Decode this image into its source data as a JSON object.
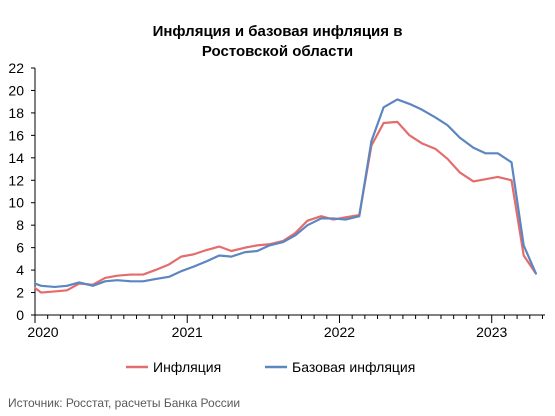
{
  "chart_data": {
    "type": "line",
    "title_lines": [
      "Инфляция и базовая инфляция в",
      "Ростовской области"
    ],
    "xlabel": "",
    "ylabel": "",
    "ylim": [
      0,
      22
    ],
    "yticks": [
      "0",
      "2",
      "4",
      "6",
      "8",
      "10",
      "12",
      "14",
      "16",
      "18",
      "20",
      "22"
    ],
    "xlim": [
      2020.0,
      2023.35
    ],
    "xticks": [
      {
        "value": 2020,
        "label": "2020"
      },
      {
        "value": 2021,
        "label": "2021"
      },
      {
        "value": 2022,
        "label": "2022"
      },
      {
        "value": 2023,
        "label": "2023"
      }
    ],
    "grid": false,
    "legend_position": "bottom",
    "series": [
      {
        "name": "Инфляция",
        "color": "#E46C6C",
        "points": [
          [
            2020.0,
            2.4
          ],
          [
            2020.04,
            2.0
          ],
          [
            2020.13,
            2.1
          ],
          [
            2020.21,
            2.2
          ],
          [
            2020.29,
            2.8
          ],
          [
            2020.38,
            2.7
          ],
          [
            2020.46,
            3.3
          ],
          [
            2020.54,
            3.5
          ],
          [
            2020.63,
            3.6
          ],
          [
            2020.71,
            3.6
          ],
          [
            2020.79,
            4.0
          ],
          [
            2020.88,
            4.5
          ],
          [
            2020.96,
            5.2
          ],
          [
            2021.04,
            5.4
          ],
          [
            2021.13,
            5.8
          ],
          [
            2021.21,
            6.1
          ],
          [
            2021.29,
            5.7
          ],
          [
            2021.38,
            6.0
          ],
          [
            2021.46,
            6.2
          ],
          [
            2021.54,
            6.3
          ],
          [
            2021.63,
            6.6
          ],
          [
            2021.71,
            7.3
          ],
          [
            2021.79,
            8.4
          ],
          [
            2021.88,
            8.8
          ],
          [
            2021.96,
            8.5
          ],
          [
            2022.04,
            8.7
          ],
          [
            2022.13,
            8.9
          ],
          [
            2022.21,
            15.1
          ],
          [
            2022.29,
            17.1
          ],
          [
            2022.38,
            17.2
          ],
          [
            2022.46,
            16.0
          ],
          [
            2022.54,
            15.3
          ],
          [
            2022.63,
            14.8
          ],
          [
            2022.71,
            13.9
          ],
          [
            2022.79,
            12.7
          ],
          [
            2022.88,
            11.9
          ],
          [
            2022.96,
            12.1
          ],
          [
            2023.04,
            12.3
          ],
          [
            2023.13,
            12.0
          ],
          [
            2023.21,
            5.3
          ],
          [
            2023.29,
            3.7
          ]
        ]
      },
      {
        "name": "Базовая инфляция",
        "color": "#5B86C0",
        "points": [
          [
            2020.0,
            2.8
          ],
          [
            2020.04,
            2.6
          ],
          [
            2020.13,
            2.5
          ],
          [
            2020.21,
            2.6
          ],
          [
            2020.29,
            2.9
          ],
          [
            2020.38,
            2.6
          ],
          [
            2020.46,
            3.0
          ],
          [
            2020.54,
            3.1
          ],
          [
            2020.63,
            3.0
          ],
          [
            2020.71,
            3.0
          ],
          [
            2020.79,
            3.2
          ],
          [
            2020.88,
            3.4
          ],
          [
            2020.96,
            3.9
          ],
          [
            2021.04,
            4.3
          ],
          [
            2021.13,
            4.8
          ],
          [
            2021.21,
            5.3
          ],
          [
            2021.29,
            5.2
          ],
          [
            2021.38,
            5.6
          ],
          [
            2021.46,
            5.7
          ],
          [
            2021.54,
            6.2
          ],
          [
            2021.63,
            6.5
          ],
          [
            2021.71,
            7.1
          ],
          [
            2021.79,
            8.0
          ],
          [
            2021.88,
            8.6
          ],
          [
            2021.96,
            8.6
          ],
          [
            2022.04,
            8.5
          ],
          [
            2022.13,
            8.8
          ],
          [
            2022.21,
            15.5
          ],
          [
            2022.29,
            18.5
          ],
          [
            2022.38,
            19.2
          ],
          [
            2022.46,
            18.8
          ],
          [
            2022.54,
            18.3
          ],
          [
            2022.63,
            17.6
          ],
          [
            2022.71,
            16.9
          ],
          [
            2022.79,
            15.8
          ],
          [
            2022.88,
            14.9
          ],
          [
            2022.96,
            14.4
          ],
          [
            2023.04,
            14.4
          ],
          [
            2023.13,
            13.6
          ],
          [
            2023.21,
            6.2
          ],
          [
            2023.29,
            3.7
          ]
        ]
      }
    ]
  },
  "source": "Источник: Росстат, расчеты Банка России"
}
